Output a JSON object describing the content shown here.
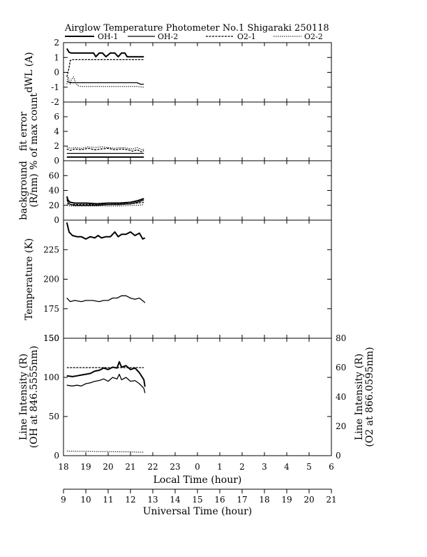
{
  "page": {
    "title": "Airglow Temperature Photometer No.1  Shigaraki  250118"
  },
  "legend": [
    {
      "name": "OH-1",
      "style": "solid-thick"
    },
    {
      "name": "OH-2",
      "style": "solid-thin"
    },
    {
      "name": "O2-1",
      "style": "dashed"
    },
    {
      "name": "O2-2",
      "style": "dotted"
    }
  ],
  "x_axes": {
    "local": {
      "label": "Local Time (hour)",
      "ticks": [
        "18",
        "19",
        "20",
        "21",
        "22",
        "23",
        "0",
        "1",
        "2",
        "3",
        "4",
        "5",
        "6"
      ]
    },
    "universal": {
      "label": "Universal Time (hour)",
      "ticks": [
        "9",
        "10",
        "11",
        "12",
        "13",
        "14",
        "15",
        "16",
        "17",
        "18",
        "19",
        "20",
        "21"
      ]
    }
  },
  "chart_data": [
    {
      "type": "line",
      "panel": "dwl",
      "ylabel": "dWL (A)",
      "ylim": [
        -2,
        2
      ],
      "yticks": [
        "2",
        "1",
        "0",
        "-1",
        "-2"
      ],
      "xlim": [
        18,
        30
      ],
      "series": [
        {
          "name": "OH-1",
          "x": [
            18.15,
            18.25,
            18.35,
            18.6,
            19.0,
            19.35,
            19.45,
            19.6,
            19.75,
            19.9,
            20.1,
            20.3,
            20.45,
            20.6,
            20.75,
            20.85,
            21.0,
            21.3,
            21.6
          ],
          "y": [
            1.6,
            1.35,
            1.3,
            1.3,
            1.3,
            1.3,
            1.05,
            1.3,
            1.3,
            1.05,
            1.3,
            1.3,
            1.05,
            1.3,
            1.3,
            1.05,
            1.05,
            1.05,
            1.05
          ]
        },
        {
          "name": "OH-2",
          "x": [
            18.15,
            18.3,
            18.6,
            19.0,
            19.5,
            20.0,
            20.5,
            21.0,
            21.3,
            21.45,
            21.6
          ],
          "y": [
            -0.6,
            -0.7,
            -0.7,
            -0.7,
            -0.7,
            -0.7,
            -0.7,
            -0.7,
            -0.7,
            -0.8,
            -0.8
          ]
        },
        {
          "name": "O2-1",
          "x": [
            18.15,
            18.25,
            18.3,
            18.4,
            18.6,
            19.0,
            19.5,
            20.0,
            20.5,
            21.0,
            21.3,
            21.6
          ],
          "y": [
            -0.3,
            0.3,
            0.8,
            0.85,
            0.85,
            0.85,
            0.85,
            0.85,
            0.85,
            0.85,
            0.85,
            0.85
          ]
        },
        {
          "name": "O2-2",
          "x": [
            18.15,
            18.2,
            18.3,
            18.35,
            18.45,
            18.55,
            18.65,
            18.8,
            19.0,
            19.5,
            20.0,
            20.5,
            21.0,
            21.3,
            21.6
          ],
          "y": [
            -0.8,
            -0.3,
            -0.8,
            -0.5,
            -0.3,
            -0.75,
            -0.9,
            -0.95,
            -0.95,
            -0.95,
            -0.95,
            -0.95,
            -0.95,
            -0.95,
            -1.0
          ]
        }
      ]
    },
    {
      "type": "line",
      "panel": "fit-error",
      "ylabel": "fit error",
      "ylabel2": "% of max count",
      "ylim": [
        0,
        8
      ],
      "yticks": [
        "6",
        "4",
        "2",
        "0"
      ],
      "xlim": [
        18,
        30
      ],
      "series": [
        {
          "name": "OH-1",
          "x": [
            18.15,
            18.5,
            19.0,
            19.5,
            20.0,
            20.5,
            21.0,
            21.3,
            21.6
          ],
          "y": [
            0.5,
            0.5,
            0.5,
            0.5,
            0.5,
            0.5,
            0.5,
            0.5,
            0.5
          ]
        },
        {
          "name": "OH-2",
          "x": [
            18.15,
            18.5,
            19.0,
            19.5,
            20.0,
            20.5,
            21.0,
            21.3,
            21.6
          ],
          "y": [
            1.0,
            1.0,
            1.0,
            1.0,
            1.0,
            1.0,
            1.0,
            1.0,
            1.0
          ]
        },
        {
          "name": "O2-1",
          "x": [
            18.15,
            18.3,
            18.5,
            18.8,
            19.1,
            19.4,
            19.7,
            20.0,
            20.3,
            20.6,
            20.9,
            21.1,
            21.3,
            21.5,
            21.6
          ],
          "y": [
            1.6,
            1.4,
            1.6,
            1.5,
            1.7,
            1.5,
            1.6,
            1.7,
            1.5,
            1.6,
            1.5,
            1.3,
            1.5,
            1.2,
            1.4
          ]
        },
        {
          "name": "O2-2",
          "x": [
            18.15,
            18.3,
            18.5,
            18.8,
            19.1,
            19.4,
            19.7,
            20.0,
            20.3,
            20.6,
            20.9,
            21.1,
            21.3,
            21.5,
            21.6
          ],
          "y": [
            1.9,
            1.7,
            1.8,
            1.7,
            1.9,
            1.8,
            1.9,
            1.8,
            1.7,
            1.8,
            1.7,
            1.6,
            1.8,
            1.5,
            1.6
          ]
        }
      ]
    },
    {
      "type": "line",
      "panel": "background",
      "ylabel": "background",
      "ylabel2": "(R/nm)",
      "ylim": [
        0,
        80
      ],
      "yticks": [
        "60",
        "40",
        "20",
        "0"
      ],
      "xlim": [
        18,
        30
      ],
      "series": [
        {
          "name": "OH-1",
          "x": [
            18.15,
            18.2,
            18.3,
            18.5,
            19.0,
            19.5,
            20.0,
            20.5,
            21.0,
            21.3,
            21.6
          ],
          "y": [
            32,
            27,
            24,
            23,
            23,
            22,
            23,
            23,
            24,
            26,
            29
          ]
        },
        {
          "name": "OH-2",
          "x": [
            18.15,
            18.2,
            18.3,
            18.5,
            19.0,
            19.5,
            20.0,
            20.5,
            21.0,
            21.3,
            21.6
          ],
          "y": [
            28,
            24,
            21,
            20,
            20,
            20,
            21,
            21,
            22,
            24,
            27
          ]
        },
        {
          "name": "O2-1",
          "x": [
            18.15,
            18.3,
            18.5,
            19.0,
            19.5,
            20.0,
            20.5,
            21.0,
            21.3,
            21.6
          ],
          "y": [
            22,
            21,
            21,
            21,
            21,
            21,
            22,
            22,
            23,
            24
          ]
        },
        {
          "name": "O2-2",
          "x": [
            18.15,
            18.3,
            18.5,
            19.0,
            19.5,
            20.0,
            20.5,
            21.0,
            21.3,
            21.6
          ],
          "y": [
            20,
            19,
            19,
            19,
            19,
            19,
            19,
            20,
            20,
            21
          ]
        }
      ]
    },
    {
      "type": "line",
      "panel": "temperature",
      "ylabel": "Temperature (K)",
      "ylim": [
        150,
        250
      ],
      "yticks": [
        "225",
        "200",
        "175",
        "150"
      ],
      "xlim": [
        18,
        30
      ],
      "series": [
        {
          "name": "OH-1",
          "x": [
            18.15,
            18.25,
            18.4,
            18.6,
            18.8,
            19.0,
            19.2,
            19.4,
            19.55,
            19.7,
            19.9,
            20.1,
            20.3,
            20.45,
            20.6,
            20.8,
            21.0,
            21.2,
            21.4,
            21.55,
            21.65
          ],
          "y": [
            248,
            240,
            237,
            236,
            236,
            234,
            236,
            235,
            237,
            235,
            236,
            236,
            240,
            236,
            238,
            238,
            240,
            237,
            239,
            234,
            235
          ]
        },
        {
          "name": "OH-2",
          "x": [
            18.15,
            18.3,
            18.5,
            18.8,
            19.0,
            19.3,
            19.6,
            19.8,
            20.0,
            20.2,
            20.4,
            20.6,
            20.8,
            21.0,
            21.2,
            21.4,
            21.6,
            21.65
          ],
          "y": [
            184,
            181,
            182,
            181,
            182,
            182,
            181,
            182,
            182,
            184,
            184,
            186,
            186,
            184,
            183,
            184,
            181,
            180
          ]
        }
      ]
    },
    {
      "type": "line",
      "panel": "line-intensity",
      "ylabel": "Line Intensity (R)",
      "ylabel2": "(OH at 846.5555nm)",
      "ylabel_right": "Line Intensity (R)",
      "ylabel_right2": "(O2 at 866.0595nm)",
      "ylim": [
        0,
        150
      ],
      "ylim_right": [
        0,
        80
      ],
      "yticks": [
        "150",
        "100",
        "50",
        "0"
      ],
      "yticks_right": [
        "80",
        "60",
        "40",
        "20",
        "0"
      ],
      "xlim": [
        18,
        30
      ],
      "series": [
        {
          "name": "OH-1",
          "axis": "left",
          "x": [
            18.15,
            18.4,
            18.6,
            18.8,
            19.0,
            19.2,
            19.4,
            19.6,
            19.8,
            20.0,
            20.2,
            20.4,
            20.5,
            20.6,
            20.8,
            21.0,
            21.2,
            21.4,
            21.6,
            21.65
          ],
          "y": [
            102,
            101,
            102,
            103,
            104,
            105,
            108,
            109,
            112,
            110,
            113,
            112,
            120,
            113,
            115,
            110,
            112,
            106,
            97,
            88
          ]
        },
        {
          "name": "OH-2",
          "axis": "left",
          "x": [
            18.15,
            18.4,
            18.6,
            18.8,
            19.0,
            19.2,
            19.4,
            19.6,
            19.8,
            20.0,
            20.2,
            20.4,
            20.5,
            20.6,
            20.8,
            21.0,
            21.2,
            21.4,
            21.6,
            21.65
          ],
          "y": [
            90,
            89,
            90,
            89,
            92,
            93,
            95,
            96,
            98,
            95,
            100,
            98,
            104,
            97,
            100,
            95,
            96,
            92,
            86,
            80
          ]
        },
        {
          "name": "O2-1",
          "axis": "right",
          "x": [
            18.15,
            18.5,
            19.0,
            19.5,
            20.0,
            20.5,
            21.0,
            21.3,
            21.6
          ],
          "y": [
            60,
            60,
            60,
            60,
            60,
            60,
            60,
            60,
            60
          ]
        },
        {
          "name": "O2-2",
          "axis": "right",
          "x": [
            18.15,
            18.5,
            19.0,
            19.5,
            20.0,
            20.5,
            21.0,
            21.3,
            21.6
          ],
          "y": [
            3.2,
            3.0,
            3.0,
            2.8,
            2.8,
            2.6,
            2.6,
            2.4,
            2.4
          ]
        }
      ]
    }
  ]
}
